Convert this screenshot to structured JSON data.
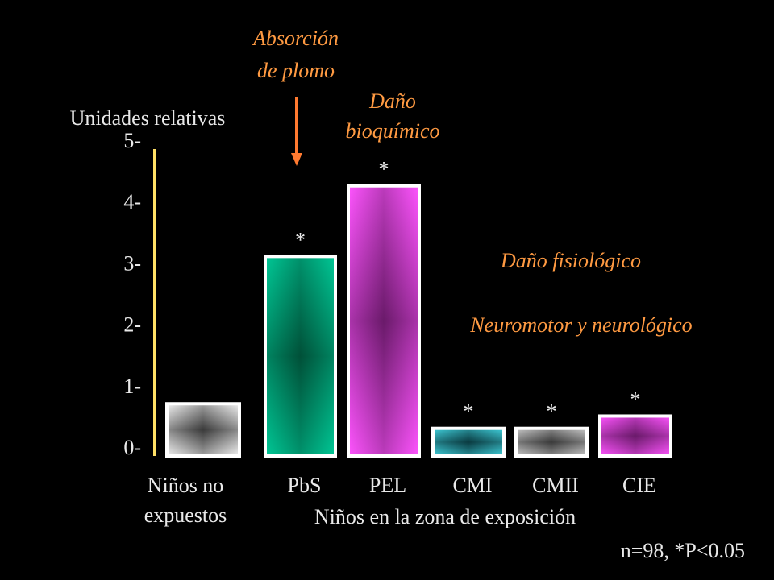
{
  "chart_data": {
    "type": "bar",
    "ylabel": "Unidades relativas",
    "ylim": [
      0,
      5
    ],
    "yticks": [
      "0-",
      "1-",
      "2-",
      "3-",
      "4-",
      "5-"
    ],
    "categories": [
      "Niños no expuestos",
      "PbS",
      "PEL",
      "CMI",
      "CMII",
      "CIE"
    ],
    "category_lines": [
      [
        "Niños no",
        "expuestos"
      ],
      [
        "PbS"
      ],
      [
        "PEL"
      ],
      [
        "CMI"
      ],
      [
        "CMII"
      ],
      [
        "CIE"
      ]
    ],
    "values": [
      0.85,
      3.25,
      4.4,
      0.45,
      0.45,
      0.65
    ],
    "significant": [
      false,
      true,
      true,
      true,
      true,
      true
    ],
    "significance_marker": "*",
    "bar_colors": [
      "#f2f2f2",
      "#00c896",
      "#ff55ff",
      "#40d0dc",
      "#c8c8c8",
      "#ff55ff"
    ],
    "bar_dark_colors": [
      "#3a3a3a",
      "#005038",
      "#6a1a6a",
      "#0a3a40",
      "#3a3a3a",
      "#6a1a6a"
    ],
    "group_label": "Niños en la zona de exposición",
    "note": "n=98, *P<0.05",
    "annotations": {
      "absorcion": [
        "Absorción",
        "de plomo"
      ],
      "bioquimico": [
        "Daño",
        "bioquímico"
      ],
      "fisiologico": "Daño fisiológico",
      "neuromotor": "Neuromotor y neurológico"
    },
    "colors": {
      "axis": "#ffe066",
      "annotation": "#ff9a42",
      "arrow": "#ff7a30",
      "text": "#e9e9e9"
    }
  }
}
